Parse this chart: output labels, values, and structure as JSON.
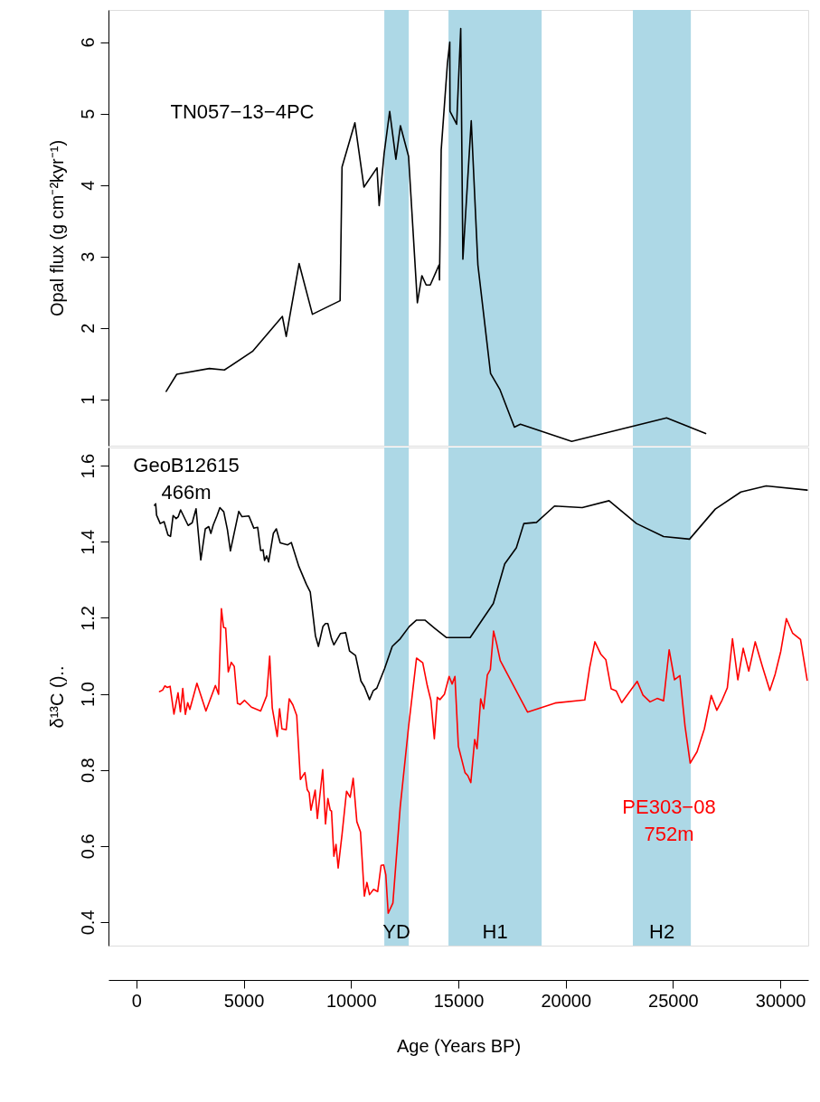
{
  "chart_data": [
    {
      "type": "line",
      "ylabel": "Opal flux (g cm⁻²kyr⁻¹)",
      "xlim": [
        -1300,
        31300
      ],
      "ylim": [
        0.35,
        6.45
      ],
      "yticks": [
        1,
        2,
        3,
        4,
        5,
        6
      ],
      "tick_labels": "y",
      "bands": [
        {
          "axis": "x",
          "from": 11550,
          "to": 12690,
          "color": "#add8e6"
        },
        {
          "axis": "x",
          "from": 14540,
          "to": 18880,
          "color": "#add8e6"
        },
        {
          "axis": "x",
          "from": 23130,
          "to": 25830,
          "color": "#add8e6"
        }
      ],
      "series": [
        {
          "name": "TN057−13−4PC",
          "color": "#000000",
          "x": [
            1390,
            1880,
            3400,
            4100,
            5410,
            6800,
            6980,
            7580,
            8200,
            9490,
            9580,
            10180,
            10600,
            11210,
            11310,
            11545,
            11800,
            12090,
            12300,
            12680,
            13090,
            13300,
            13500,
            13690,
            14100,
            14120,
            14200,
            14490,
            14600,
            14610,
            14920,
            15110,
            15210,
            15600,
            15910,
            16500,
            16930,
            17610,
            17890,
            20280,
            24700,
            26520
          ],
          "values": [
            1.11,
            1.35,
            1.43,
            1.41,
            1.67,
            2.16,
            1.88,
            2.9,
            2.19,
            2.38,
            4.25,
            4.87,
            3.97,
            4.24,
            3.71,
            4.45,
            5.03,
            4.36,
            4.83,
            4.4,
            2.35,
            2.73,
            2.6,
            2.6,
            2.88,
            2.67,
            4.49,
            5.7,
            6.0,
            5.03,
            4.85,
            6.19,
            2.96,
            4.9,
            2.88,
            1.36,
            1.14,
            0.61,
            0.65,
            0.41,
            0.74,
            0.52
          ]
        }
      ]
    },
    {
      "type": "line",
      "ylabel": "δ¹³C ()..",
      "xlabel": "Age (Years BP)",
      "xlim": [
        -1300,
        31300
      ],
      "xticks": [
        0,
        5000,
        10000,
        15000,
        20000,
        25000,
        30000
      ],
      "ylim": [
        0.338,
        1.648
      ],
      "yticks": [
        0.4,
        0.6,
        0.8,
        {
          "value": 1,
          "label": "1.0"
        },
        1.2,
        1.4,
        1.6
      ],
      "bands": [
        {
          "axis": "x",
          "from": 11550,
          "to": 12690,
          "label": "YD",
          "color": "#add8e6"
        },
        {
          "axis": "x",
          "from": 14540,
          "to": 18880,
          "label": "H1",
          "color": "#add8e6"
        },
        {
          "axis": "x",
          "from": 23130,
          "to": 25830,
          "label": "H2",
          "color": "#add8e6"
        }
      ],
      "series": [
        {
          "name": "GeoB12615\n466m",
          "color": "#000000",
          "x": [
            843,
            898,
            940,
            1110,
            1290,
            1470,
            1590,
            1710,
            1850,
            1950,
            2060,
            2410,
            2600,
            2780,
            3000,
            3210,
            3370,
            3470,
            3580,
            3750,
            3890,
            4070,
            4240,
            4380,
            4770,
            4920,
            5240,
            5470,
            5650,
            5790,
            5900,
            5970,
            6070,
            6160,
            6380,
            6520,
            6700,
            7050,
            7220,
            7570,
            7920,
            8100,
            8340,
            8480,
            8690,
            8810,
            8920,
            9090,
            9200,
            9510,
            9750,
            9930,
            10210,
            10460,
            10630,
            10860,
            11030,
            11200,
            11560,
            11920,
            12290,
            12710,
            13050,
            13440,
            13890,
            14450,
            15550,
            16630,
            17160,
            17700,
            18050,
            18640,
            19480,
            20770,
            22020,
            23300,
            24560,
            25770,
            26970,
            28160,
            29340,
            31250
          ],
          "values": [
            1.496,
            1.5,
            1.47,
            1.448,
            1.453,
            1.418,
            1.414,
            1.469,
            1.461,
            1.466,
            1.484,
            1.443,
            1.45,
            1.487,
            1.352,
            1.434,
            1.44,
            1.422,
            1.444,
            1.468,
            1.49,
            1.479,
            1.432,
            1.376,
            1.48,
            1.466,
            1.468,
            1.436,
            1.438,
            1.377,
            1.379,
            1.351,
            1.363,
            1.347,
            1.422,
            1.434,
            1.397,
            1.392,
            1.398,
            1.335,
            1.288,
            1.268,
            1.153,
            1.125,
            1.177,
            1.185,
            1.185,
            1.145,
            1.129,
            1.159,
            1.161,
            1.113,
            1.101,
            1.034,
            1.018,
            0.985,
            1.008,
            1.015,
            1.066,
            1.125,
            1.145,
            1.177,
            1.194,
            1.194,
            1.173,
            1.148,
            1.148,
            1.238,
            1.342,
            1.384,
            1.448,
            1.451,
            1.494,
            1.49,
            1.508,
            1.448,
            1.414,
            1.407,
            1.486,
            1.531,
            1.547,
            1.536
          ]
        },
        {
          "name": "PE303−08\n752m",
          "color": "#ff0000",
          "x": [
            1080,
            1220,
            1330,
            1430,
            1570,
            1750,
            1940,
            2050,
            2160,
            2280,
            2390,
            2490,
            2820,
            3240,
            3680,
            3830,
            3960,
            4060,
            4160,
            4280,
            4420,
            4560,
            4710,
            4830,
            5040,
            5360,
            5790,
            6070,
            6210,
            6330,
            6560,
            6670,
            6780,
            6980,
            7120,
            7290,
            7470,
            7640,
            7850,
            7960,
            8050,
            8130,
            8330,
            8430,
            8680,
            8810,
            8920,
            9030,
            9090,
            9200,
            9300,
            9400,
            9580,
            9790,
            9960,
            10100,
            10270,
            10440,
            10620,
            10740,
            10860,
            11050,
            11240,
            11400,
            11520,
            11620,
            11730,
            11950,
            12290,
            12670,
            13050,
            13340,
            13550,
            13720,
            13880,
            14020,
            14140,
            14350,
            14570,
            14710,
            14840,
            15000,
            15310,
            15440,
            15580,
            15760,
            15870,
            16040,
            16180,
            16350,
            16490,
            16640,
            16780,
            16950,
            18220,
            19510,
            20890,
            21120,
            21360,
            21640,
            21870,
            22120,
            22350,
            22610,
            23330,
            23600,
            23930,
            24260,
            24560,
            24820,
            25070,
            25320,
            25560,
            25800,
            26120,
            26460,
            26780,
            27040,
            27290,
            27530,
            27770,
            28020,
            28270,
            28530,
            28830,
            29170,
            29510,
            29760,
            30020,
            30280,
            30570,
            30940,
            31250
          ],
          "values": [
            1.006,
            1.01,
            1.021,
            1.017,
            1.02,
            0.947,
            1.003,
            0.953,
            1.014,
            0.946,
            0.977,
            0.959,
            1.028,
            0.955,
            1.022,
            0.999,
            1.224,
            1.175,
            1.173,
            1.058,
            1.083,
            1.072,
            0.975,
            0.972,
            0.983,
            0.965,
            0.955,
            0.995,
            1.099,
            0.963,
            0.888,
            0.961,
            0.908,
            0.906,
            0.987,
            0.971,
            0.943,
            0.775,
            0.793,
            0.748,
            0.74,
            0.694,
            0.747,
            0.672,
            0.801,
            0.658,
            0.725,
            0.694,
            0.692,
            0.573,
            0.604,
            0.542,
            0.63,
            0.744,
            0.728,
            0.778,
            0.664,
            0.637,
            0.468,
            0.504,
            0.472,
            0.486,
            0.48,
            0.549,
            0.55,
            0.524,
            0.423,
            0.45,
            0.702,
            0.908,
            1.094,
            1.082,
            1.022,
            0.983,
            0.882,
            0.991,
            0.985,
            0.999,
            1.046,
            1.026,
            1.046,
            0.862,
            0.793,
            0.785,
            0.767,
            0.88,
            0.856,
            0.987,
            0.961,
            1.05,
            1.064,
            1.165,
            1.133,
            1.088,
            0.952,
            0.976,
            0.984,
            1.07,
            1.137,
            1.104,
            1.09,
            1.013,
            1.008,
            0.977,
            1.033,
            0.997,
            0.979,
            0.988,
            0.982,
            1.116,
            1.037,
            1.048,
            0.915,
            0.818,
            0.848,
            0.908,
            0.996,
            0.957,
            0.984,
            1.016,
            1.145,
            1.037,
            1.12,
            1.06,
            1.137,
            1.071,
            1.009,
            1.052,
            1.112,
            1.198,
            1.16,
            1.143,
            1.036
          ]
        }
      ]
    }
  ]
}
